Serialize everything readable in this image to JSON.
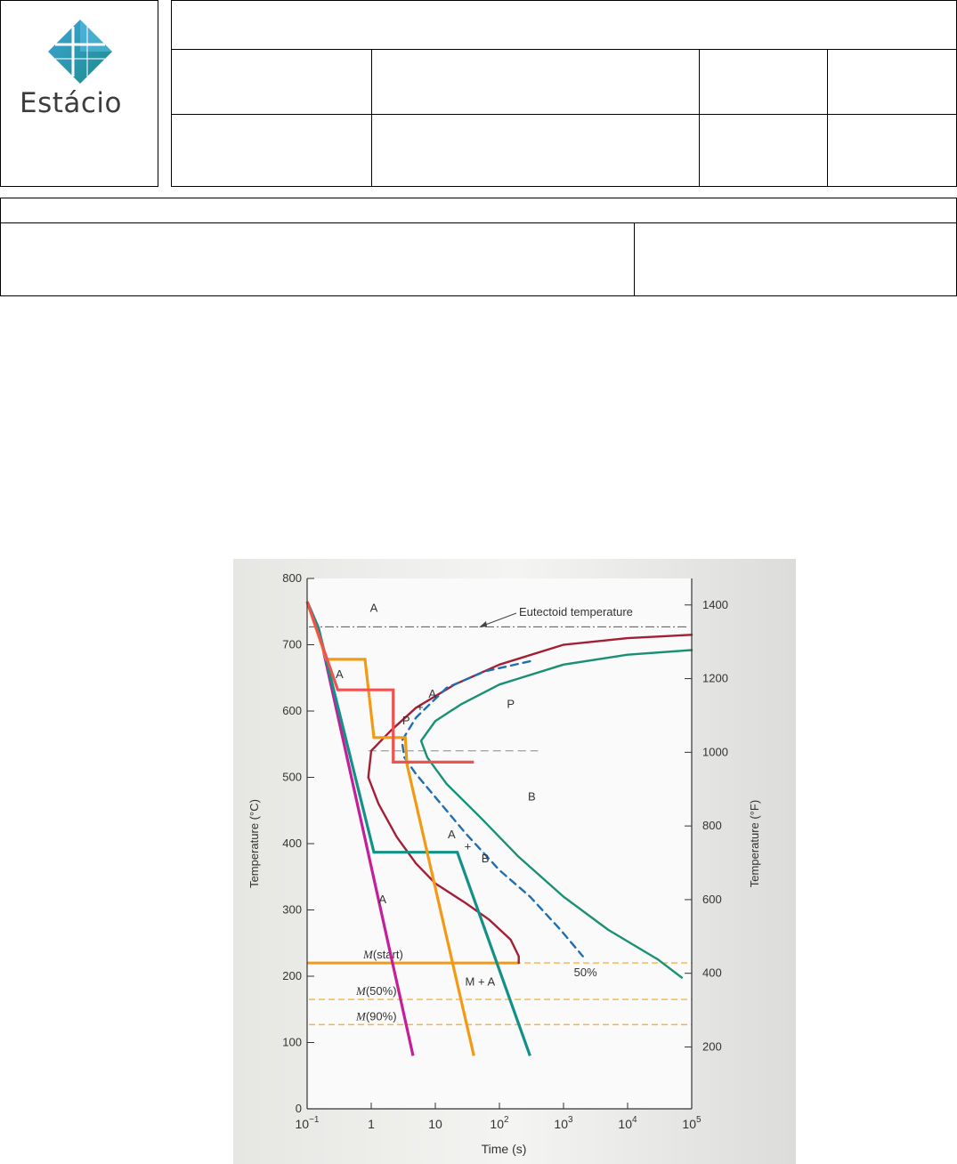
{
  "header": {
    "logo_text": "Estácio"
  },
  "colors": {
    "curve_start": "#a31f34",
    "curve_50": "#1f6fb0",
    "curve_finish": "#1a9073",
    "path_magenta": "#c41e9b",
    "path_teal": "#139187",
    "path_orange": "#f39a14",
    "path_red": "#ef5350",
    "m_lines": "#f2b548"
  },
  "chart_data": {
    "type": "line",
    "xlabel": "Time (s)",
    "ylabel_left": "Temperature (°C)",
    "ylabel_right": "Temperature (°F)",
    "x_scale": "log",
    "xlim": [
      0.1,
      100000
    ],
    "ylim": [
      0,
      800
    ],
    "x_ticks": [
      {
        "v": 0.1,
        "base": "10",
        "exp": "−1"
      },
      {
        "v": 1,
        "base": "1",
        "exp": ""
      },
      {
        "v": 10,
        "base": "10",
        "exp": ""
      },
      {
        "v": 100,
        "base": "10",
        "exp": "2"
      },
      {
        "v": 1000,
        "base": "10",
        "exp": "3"
      },
      {
        "v": 10000,
        "base": "10",
        "exp": "4"
      },
      {
        "v": 100000,
        "base": "10",
        "exp": "5"
      }
    ],
    "y_ticks_left": [
      "0",
      "100",
      "200",
      "300",
      "400",
      "500",
      "600",
      "700",
      "800"
    ],
    "y_ticks_right": [
      {
        "label": "200",
        "f": 200
      },
      {
        "label": "400",
        "f": 400
      },
      {
        "label": "600",
        "f": 600
      },
      {
        "label": "800",
        "f": 800
      },
      {
        "label": "1000",
        "f": 1000
      },
      {
        "label": "1200",
        "f": 1200
      },
      {
        "label": "1400",
        "f": 1400
      }
    ],
    "eutectoid": {
      "label": "Eutectoid temperature",
      "y": 727
    },
    "m_lines": [
      {
        "label_m": "M",
        "label_rest": "(start)",
        "y": 220
      },
      {
        "label_m": "M",
        "label_rest": "(50%)",
        "y": 165
      },
      {
        "label_m": "M",
        "label_rest": "(90%)",
        "y": 127
      }
    ],
    "region_labels": [
      {
        "text": "A",
        "x": 1.1,
        "y": 750
      },
      {
        "text": "A",
        "x": 0.32,
        "y": 650
      },
      {
        "text": "P",
        "x": 3.5,
        "y": 580
      },
      {
        "text": "+",
        "x": 5.8,
        "y": 600
      },
      {
        "text": "A",
        "x": 9,
        "y": 620
      },
      {
        "text": "P",
        "x": 150,
        "y": 605
      },
      {
        "text": "B",
        "x": 320,
        "y": 465
      },
      {
        "text": "A",
        "x": 18,
        "y": 408
      },
      {
        "text": "+",
        "x": 32,
        "y": 390
      },
      {
        "text": "B",
        "x": 60,
        "y": 372
      },
      {
        "text": "A",
        "x": 1.5,
        "y": 310
      },
      {
        "text": "M + A",
        "x": 50,
        "y": 186
      },
      {
        "text": "50%",
        "x": 2200,
        "y": 200
      }
    ],
    "series": [
      {
        "key": "start",
        "dash": "",
        "points": [
          [
            100000,
            715
          ],
          [
            10000,
            710
          ],
          [
            1000,
            700
          ],
          [
            100,
            670
          ],
          [
            20,
            640
          ],
          [
            5,
            605
          ],
          [
            2,
            570
          ],
          [
            1,
            540
          ],
          [
            0.9,
            500
          ],
          [
            1.3,
            460
          ],
          [
            2.5,
            410
          ],
          [
            5,
            370
          ],
          [
            10,
            340
          ],
          [
            30,
            310
          ],
          [
            70,
            285
          ],
          [
            150,
            255
          ],
          [
            200,
            230
          ],
          [
            200,
            220
          ]
        ]
      },
      {
        "key": "50",
        "dash": "8,6",
        "points": [
          [
            300,
            675
          ],
          [
            60,
            660
          ],
          [
            15,
            635
          ],
          [
            5,
            590
          ],
          [
            3,
            555
          ],
          [
            3.3,
            530
          ],
          [
            5,
            505
          ],
          [
            10,
            470
          ],
          [
            30,
            415
          ],
          [
            100,
            360
          ],
          [
            300,
            320
          ],
          [
            900,
            270
          ],
          [
            2000,
            230
          ]
        ]
      },
      {
        "key": "finish",
        "dash": "",
        "points": [
          [
            100000,
            692
          ],
          [
            10000,
            685
          ],
          [
            1000,
            670
          ],
          [
            100,
            640
          ],
          [
            25,
            610
          ],
          [
            10,
            585
          ],
          [
            6,
            555
          ],
          [
            7.5,
            530
          ],
          [
            15,
            490
          ],
          [
            50,
            440
          ],
          [
            200,
            380
          ],
          [
            1000,
            320
          ],
          [
            5000,
            270
          ],
          [
            30000,
            225
          ],
          [
            70000,
            198
          ]
        ]
      }
    ],
    "paths": [
      {
        "key": "path_magenta",
        "points": [
          [
            0.1,
            765
          ],
          [
            0.15,
            725
          ],
          [
            4.5,
            80
          ]
        ]
      },
      {
        "key": "path_teal",
        "points": [
          [
            0.1,
            765
          ],
          [
            0.15,
            725
          ],
          [
            1.1,
            387
          ],
          [
            22,
            387
          ],
          [
            300,
            80
          ]
        ]
      },
      {
        "key": "path_orange",
        "points": [
          [
            0.1,
            765
          ],
          [
            0.2,
            678
          ],
          [
            0.8,
            678
          ],
          [
            1.1,
            560
          ],
          [
            3.4,
            560
          ],
          [
            3.6,
            520
          ],
          [
            40,
            80
          ]
        ]
      },
      {
        "key": "path_red",
        "points": [
          [
            0.1,
            765
          ],
          [
            0.3,
            632
          ],
          [
            2.2,
            632
          ],
          [
            2.2,
            523
          ],
          [
            40,
            523
          ]
        ]
      }
    ]
  }
}
